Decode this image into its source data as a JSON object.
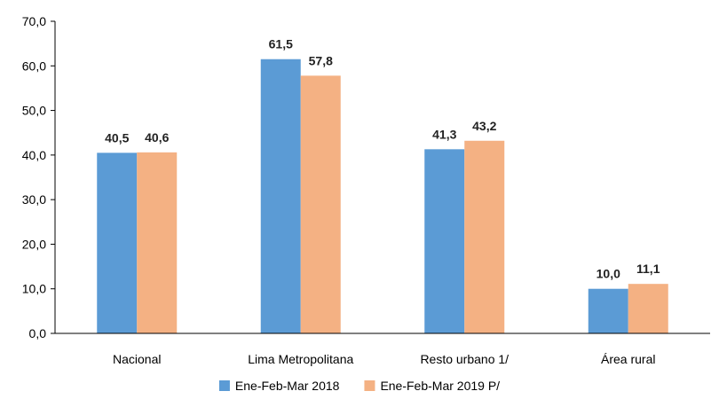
{
  "chart_data": {
    "type": "bar",
    "title": "",
    "xlabel": "",
    "ylabel": "",
    "categories": [
      "Nacional",
      "Lima Metropolitana",
      "Resto urbano 1/",
      "Área rural"
    ],
    "series": [
      {
        "name": "Ene-Feb-Mar 2018",
        "values": [
          40.5,
          61.5,
          41.3,
          10.0
        ],
        "labels": [
          "40,5",
          "61,5",
          "41,3",
          "10,0"
        ],
        "color": "#5b9bd5"
      },
      {
        "name": "Ene-Feb-Mar 2019 P/",
        "values": [
          40.6,
          57.8,
          43.2,
          11.1
        ],
        "labels": [
          "40,6",
          "57,8",
          "43,2",
          "11,1"
        ],
        "color": "#f4b183"
      }
    ],
    "ylim": [
      0,
      70
    ],
    "yticks": [
      0,
      10,
      20,
      30,
      40,
      50,
      60,
      70
    ],
    "ytick_labels": [
      "0,0",
      "10,0",
      "20,0",
      "30,0",
      "40,0",
      "50,0",
      "60,0",
      "70,0"
    ],
    "grid": false,
    "legend_position": "bottom"
  }
}
